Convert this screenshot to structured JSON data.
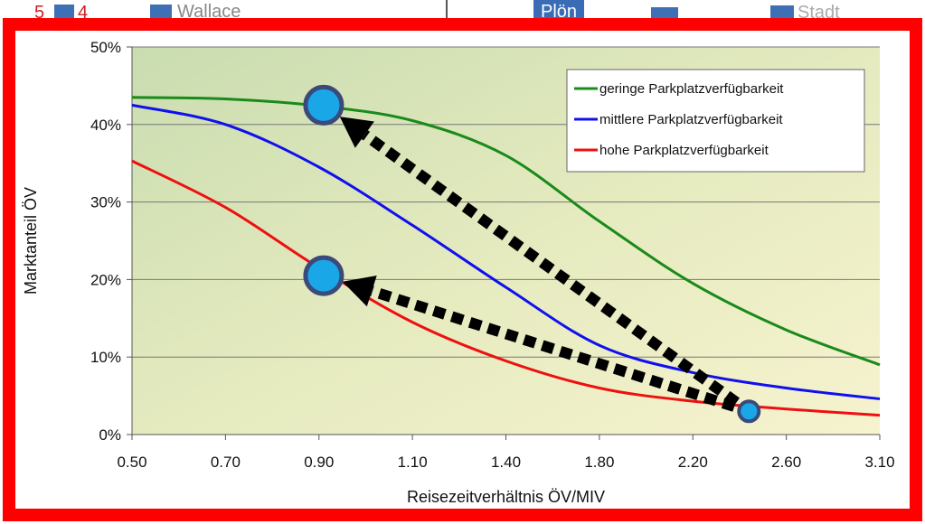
{
  "header_strip": {
    "left_numbers": [
      "5",
      "4"
    ],
    "left_word": "Wallace",
    "middle_button": "Plön",
    "right_word": "Stadt"
  },
  "chart_data": {
    "type": "line",
    "title": "",
    "xlabel": "Reisezeitverhältnis ÖV/MIV",
    "ylabel": "Marktanteil ÖV",
    "x_ticks": [
      "0.50",
      "0.70",
      "0.90",
      "1.10",
      "1.40",
      "1.80",
      "2.20",
      "2.60",
      "3.10"
    ],
    "y_ticks": [
      "0%",
      "10%",
      "20%",
      "30%",
      "40%",
      "50%"
    ],
    "ylim": [
      0,
      50
    ],
    "grid": true,
    "legend_position": "top-right",
    "series": [
      {
        "name": "geringe Parkplatzverfügbarkeit",
        "color": "#1a8a1a",
        "x": [
          0.5,
          0.7,
          0.9,
          1.1,
          1.4,
          1.8,
          2.2,
          2.6,
          3.1
        ],
        "y": [
          43.5,
          43.3,
          42.4,
          40.5,
          36.0,
          27.5,
          19.5,
          13.5,
          9.0
        ]
      },
      {
        "name": "mittlere Parkplatzverfügbarkeit",
        "color": "#1010ee",
        "x": [
          0.5,
          0.7,
          0.9,
          1.1,
          1.4,
          1.8,
          2.2,
          2.6,
          3.1
        ],
        "y": [
          42.5,
          40.0,
          34.5,
          27.0,
          19.0,
          11.5,
          8.0,
          6.0,
          4.6
        ]
      },
      {
        "name": "hohe Parkplatzverfügbarkeit",
        "color": "#ee1010",
        "x": [
          0.5,
          0.7,
          0.9,
          1.1,
          1.4,
          1.8,
          2.2,
          2.6,
          3.1
        ],
        "y": [
          35.3,
          29.3,
          21.5,
          14.5,
          9.5,
          6.0,
          4.3,
          3.3,
          2.5
        ]
      }
    ],
    "markers": [
      {
        "x": 0.91,
        "y": 42.5,
        "color": "#1aa7e8"
      },
      {
        "x": 0.91,
        "y": 20.5,
        "color": "#1aa7e8"
      },
      {
        "x": 2.44,
        "y": 3.0,
        "color": "#1aa7e8"
      }
    ],
    "arrows": [
      {
        "from": [
          2.44,
          3.0
        ],
        "to": [
          0.91,
          42.5
        ]
      },
      {
        "from": [
          2.44,
          3.0
        ],
        "to": [
          0.91,
          20.5
        ]
      }
    ]
  }
}
